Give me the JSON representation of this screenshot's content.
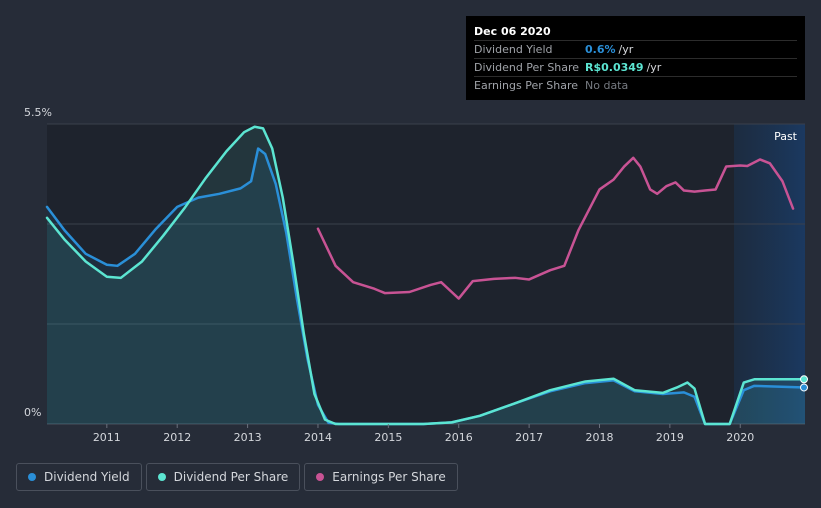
{
  "chart_data": {
    "type": "line",
    "y_axis": {
      "top_label": "5.5%",
      "bottom_label": "0%",
      "ylim": [
        0,
        5.5
      ]
    },
    "x_ticks": [
      "2011",
      "2012",
      "2013",
      "2014",
      "2015",
      "2016",
      "2017",
      "2018",
      "2019",
      "2020"
    ],
    "xlim": [
      2010.15,
      2020.92
    ],
    "region_label": "Past",
    "series": [
      {
        "name": "Dividend Yield",
        "color": "#2a8fd8",
        "points": [
          [
            2010.15,
            3.98
          ],
          [
            2010.4,
            3.55
          ],
          [
            2010.7,
            3.12
          ],
          [
            2011.0,
            2.92
          ],
          [
            2011.15,
            2.9
          ],
          [
            2011.4,
            3.12
          ],
          [
            2011.7,
            3.58
          ],
          [
            2012.0,
            3.98
          ],
          [
            2012.3,
            4.15
          ],
          [
            2012.6,
            4.22
          ],
          [
            2012.9,
            4.32
          ],
          [
            2013.05,
            4.45
          ],
          [
            2013.15,
            5.05
          ],
          [
            2013.25,
            4.95
          ],
          [
            2013.4,
            4.4
          ],
          [
            2013.55,
            3.5
          ],
          [
            2013.7,
            2.3
          ],
          [
            2013.85,
            1.2
          ],
          [
            2014.0,
            0.35
          ],
          [
            2014.15,
            0.02
          ],
          [
            2014.3,
            0.0
          ],
          [
            2015.0,
            0.0
          ],
          [
            2015.5,
            0.0
          ],
          [
            2015.9,
            0.03
          ],
          [
            2016.3,
            0.15
          ],
          [
            2016.8,
            0.38
          ],
          [
            2017.3,
            0.6
          ],
          [
            2017.8,
            0.75
          ],
          [
            2018.2,
            0.8
          ],
          [
            2018.5,
            0.6
          ],
          [
            2018.9,
            0.55
          ],
          [
            2019.2,
            0.58
          ],
          [
            2019.35,
            0.5
          ],
          [
            2019.5,
            0.0
          ],
          [
            2019.85,
            0.0
          ],
          [
            2020.05,
            0.62
          ],
          [
            2020.2,
            0.7
          ],
          [
            2020.92,
            0.67
          ]
        ]
      },
      {
        "name": "Dividend Per Share",
        "color": "#5ce5d2",
        "points": [
          [
            2010.15,
            3.78
          ],
          [
            2010.4,
            3.38
          ],
          [
            2010.7,
            2.98
          ],
          [
            2011.0,
            2.7
          ],
          [
            2011.2,
            2.68
          ],
          [
            2011.5,
            2.98
          ],
          [
            2011.8,
            3.45
          ],
          [
            2012.1,
            3.95
          ],
          [
            2012.4,
            4.5
          ],
          [
            2012.7,
            5.0
          ],
          [
            2012.95,
            5.35
          ],
          [
            2013.1,
            5.45
          ],
          [
            2013.22,
            5.42
          ],
          [
            2013.35,
            5.05
          ],
          [
            2013.5,
            4.15
          ],
          [
            2013.65,
            2.95
          ],
          [
            2013.8,
            1.65
          ],
          [
            2013.95,
            0.55
          ],
          [
            2014.1,
            0.08
          ],
          [
            2014.25,
            0.0
          ],
          [
            2015.0,
            0.0
          ],
          [
            2015.5,
            0.0
          ],
          [
            2015.9,
            0.03
          ],
          [
            2016.3,
            0.15
          ],
          [
            2016.8,
            0.38
          ],
          [
            2017.3,
            0.62
          ],
          [
            2017.8,
            0.78
          ],
          [
            2018.2,
            0.83
          ],
          [
            2018.5,
            0.62
          ],
          [
            2018.9,
            0.57
          ],
          [
            2019.1,
            0.67
          ],
          [
            2019.25,
            0.76
          ],
          [
            2019.35,
            0.65
          ],
          [
            2019.5,
            0.0
          ],
          [
            2019.85,
            0.0
          ],
          [
            2020.05,
            0.76
          ],
          [
            2020.2,
            0.82
          ],
          [
            2020.92,
            0.82
          ]
        ]
      },
      {
        "name": "Earnings Per Share",
        "color": "#c85394",
        "points": [
          [
            2014.0,
            3.58
          ],
          [
            2014.25,
            2.9
          ],
          [
            2014.5,
            2.6
          ],
          [
            2014.8,
            2.48
          ],
          [
            2014.95,
            2.4
          ],
          [
            2015.3,
            2.42
          ],
          [
            2015.6,
            2.55
          ],
          [
            2015.75,
            2.6
          ],
          [
            2015.9,
            2.42
          ],
          [
            2016.0,
            2.3
          ],
          [
            2016.2,
            2.62
          ],
          [
            2016.5,
            2.66
          ],
          [
            2016.8,
            2.68
          ],
          [
            2017.0,
            2.65
          ],
          [
            2017.3,
            2.82
          ],
          [
            2017.5,
            2.9
          ],
          [
            2017.7,
            3.55
          ],
          [
            2017.9,
            4.05
          ],
          [
            2018.0,
            4.3
          ],
          [
            2018.2,
            4.48
          ],
          [
            2018.35,
            4.72
          ],
          [
            2018.48,
            4.88
          ],
          [
            2018.58,
            4.72
          ],
          [
            2018.72,
            4.3
          ],
          [
            2018.82,
            4.22
          ],
          [
            2018.95,
            4.36
          ],
          [
            2019.08,
            4.43
          ],
          [
            2019.2,
            4.28
          ],
          [
            2019.35,
            4.26
          ],
          [
            2019.5,
            4.28
          ],
          [
            2019.65,
            4.3
          ],
          [
            2019.8,
            4.72
          ],
          [
            2020.0,
            4.74
          ],
          [
            2020.1,
            4.73
          ],
          [
            2020.28,
            4.85
          ],
          [
            2020.42,
            4.78
          ],
          [
            2020.6,
            4.45
          ],
          [
            2020.75,
            3.95
          ]
        ]
      }
    ],
    "end_markers": [
      "Dividend Yield",
      "Dividend Per Share"
    ]
  },
  "tooltip": {
    "date": "Dec 06 2020",
    "rows": [
      {
        "label": "Dividend Yield",
        "value": "0.6%",
        "unit": "/yr",
        "color": "#2a8fd8"
      },
      {
        "label": "Dividend Per Share",
        "value": "R$0.0349",
        "unit": "/yr",
        "color": "#5ce5d2"
      },
      {
        "label": "Earnings Per Share",
        "value": "No data",
        "unit": "",
        "color": "#777b82"
      }
    ]
  },
  "legend": [
    {
      "label": "Dividend Yield",
      "color": "#2a8fd8"
    },
    {
      "label": "Dividend Per Share",
      "color": "#5ce5d2"
    },
    {
      "label": "Earnings Per Share",
      "color": "#c85394"
    }
  ]
}
